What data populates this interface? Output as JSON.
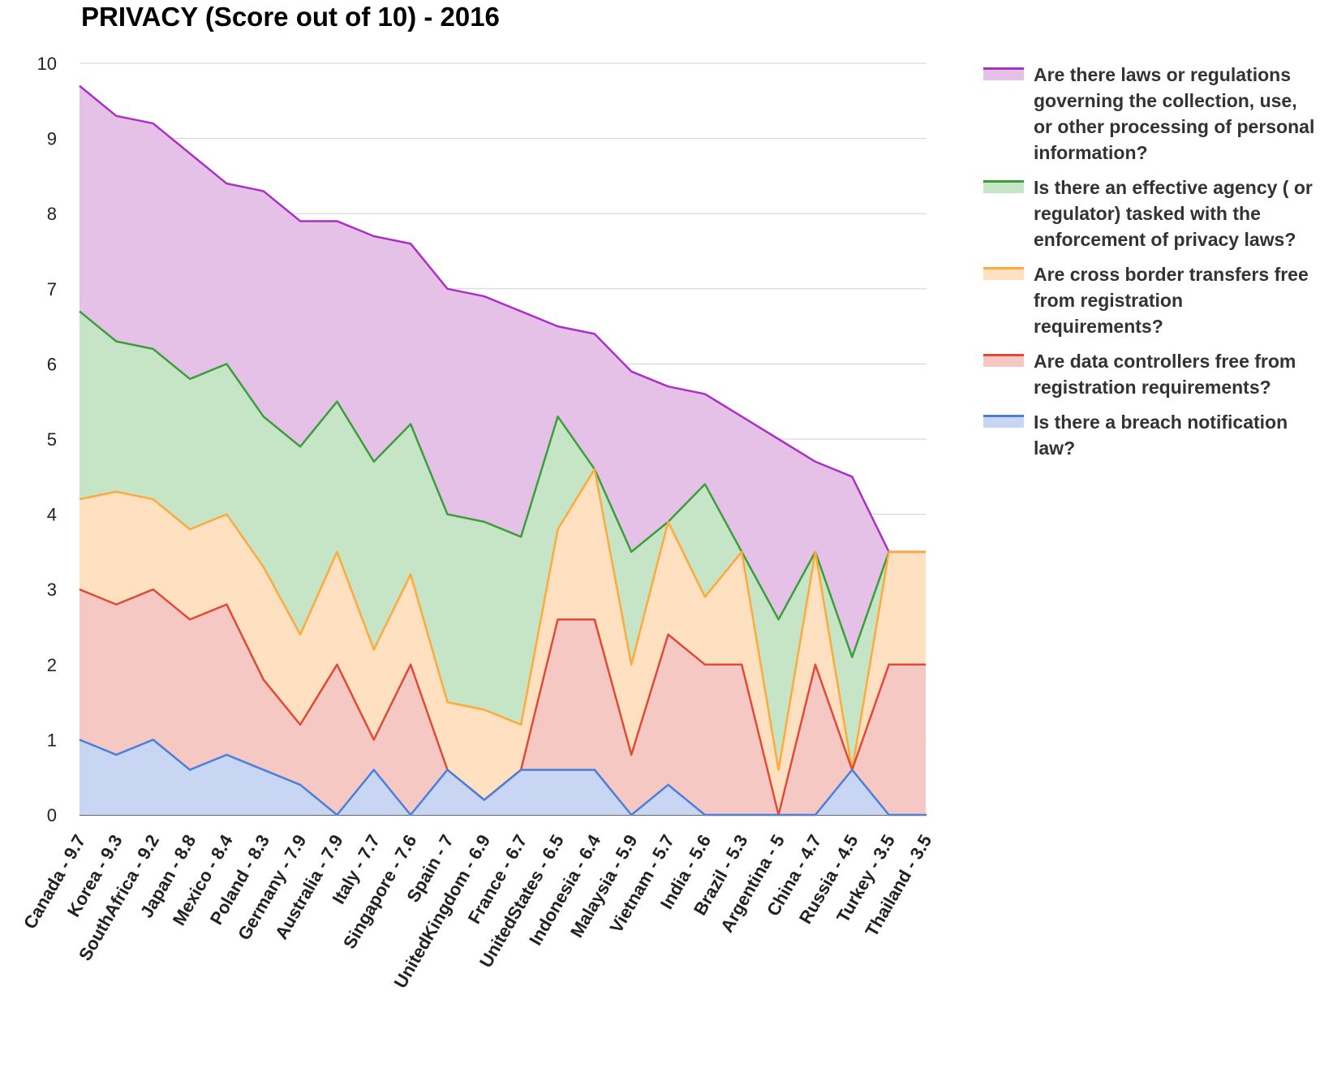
{
  "chart_data": {
    "type": "area",
    "stacked": false,
    "title": "PRIVACY (Score out of 10) - 2016",
    "xlabel": "",
    "ylabel": "",
    "ylim": [
      0,
      10
    ],
    "yticks": [
      "0",
      "1",
      "2",
      "3",
      "4",
      "5",
      "6",
      "7",
      "8",
      "9",
      "10"
    ],
    "grid": true,
    "legend_position": "right",
    "categories": [
      "Canada - 9.7",
      "Korea - 9.3",
      "SouthAfrica - 9.2",
      "Japan - 8.8",
      "Mexico - 8.4",
      "Poland - 8.3",
      "Germany - 7.9",
      "Australia - 7.9",
      "Italy - 7.7",
      "Singapore - 7.6",
      "Spain - 7",
      "UnitedKingdom - 6.9",
      "France - 6.7",
      "UnitedStates - 6.5",
      "Indonesia - 6.4",
      "Malaysia - 5.9",
      "Vietnam - 5.7",
      "India - 5.6",
      "Brazil - 5.3",
      "Argentina - 5",
      "China - 4.7",
      "Russia - 4.5",
      "Turkey - 3.5",
      "Thailand - 3.5"
    ],
    "series": [
      {
        "name": "Are there laws or regulations governing the collection, use, or other processing of personal information?",
        "color": "#ab30c4",
        "fill": "#e6c1e7",
        "values": [
          9.7,
          9.3,
          9.2,
          8.8,
          8.4,
          8.3,
          7.9,
          7.9,
          7.7,
          7.6,
          7.0,
          6.9,
          6.7,
          6.5,
          6.4,
          5.9,
          5.7,
          5.6,
          5.3,
          5.0,
          4.7,
          4.5,
          3.5,
          3.5
        ]
      },
      {
        "name": "Is there an effective agency ( or regulator) tasked with the enforcement of privacy laws?",
        "color": "#3a9e3a",
        "fill": "#c6e5c6",
        "values": [
          6.7,
          6.3,
          6.2,
          5.8,
          6.0,
          5.3,
          4.9,
          5.5,
          4.7,
          5.2,
          4.0,
          3.9,
          3.7,
          5.3,
          4.6,
          3.5,
          3.9,
          4.4,
          3.5,
          2.6,
          3.5,
          2.1,
          3.5,
          3.5
        ]
      },
      {
        "name": "Are cross border transfers free from registration requirements?",
        "color": "#ffa93a",
        "fill": "#ffe0c0",
        "values": [
          4.2,
          4.3,
          4.2,
          3.8,
          4.0,
          3.3,
          2.4,
          3.5,
          2.2,
          3.2,
          1.5,
          1.4,
          1.2,
          3.8,
          4.6,
          2.0,
          3.9,
          2.9,
          3.5,
          0.6,
          3.5,
          0.6,
          3.5,
          3.5
        ]
      },
      {
        "name": "Are data controllers free from registration requirements?",
        "color": "#e04a36",
        "fill": "#f5c8c4",
        "values": [
          3.0,
          2.8,
          3.0,
          2.6,
          2.8,
          1.8,
          1.2,
          2.0,
          1.0,
          2.0,
          0.6,
          0.2,
          0.6,
          2.6,
          2.6,
          0.8,
          2.4,
          2.0,
          2.0,
          0.0,
          2.0,
          0.6,
          2.0,
          2.0
        ]
      },
      {
        "name": "Is there a breach notification law?",
        "color": "#4a7fdc",
        "fill": "#c9d6f3",
        "values": [
          1.0,
          0.8,
          1.0,
          0.6,
          0.8,
          0.6,
          0.4,
          0.0,
          0.6,
          0.0,
          0.6,
          0.2,
          0.6,
          0.6,
          0.6,
          0.0,
          0.4,
          0.0,
          0.0,
          0.0,
          0.0,
          0.6,
          0.0,
          0.0
        ]
      }
    ]
  }
}
